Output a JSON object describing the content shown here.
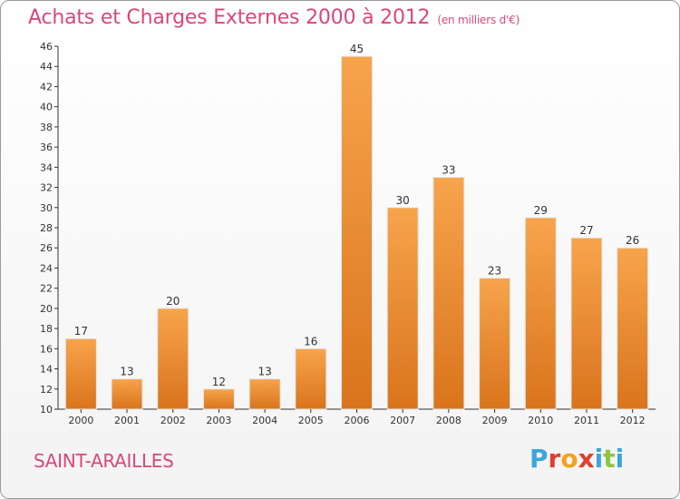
{
  "chart_data": {
    "type": "bar",
    "title": "Achats et Charges Externes 2000 à 2012",
    "subtitle": "(en milliers d'€)",
    "categories": [
      "2000",
      "2001",
      "2002",
      "2003",
      "2004",
      "2005",
      "2006",
      "2007",
      "2008",
      "2009",
      "2010",
      "2011",
      "2012"
    ],
    "values": [
      17,
      13,
      20,
      12,
      13,
      16,
      45,
      30,
      33,
      23,
      29,
      27,
      26
    ],
    "ylim": [
      10,
      46
    ],
    "yticks": [
      "10",
      "12",
      "14",
      "16",
      "18",
      "20",
      "22",
      "24",
      "26",
      "28",
      "30",
      "32",
      "34",
      "36",
      "38",
      "40",
      "42",
      "44",
      "46"
    ],
    "xlabel": "",
    "ylabel": "",
    "grid": false,
    "bar_color_top": "#f7a44c",
    "bar_color_bottom": "#d9741c"
  },
  "footer": {
    "commune": "SAINT-ARAILLES",
    "logo_letters": [
      "P",
      "r",
      "o",
      "x",
      "i",
      "t",
      "i"
    ],
    "logo_colors": [
      "#3aa6dc",
      "#e0402d",
      "#f3a21b",
      "#e0402d",
      "#3aa6dc",
      "#8cc63f",
      "#3aa6dc"
    ]
  },
  "colors": {
    "accent": "#d9477a",
    "axis": "#333333"
  }
}
